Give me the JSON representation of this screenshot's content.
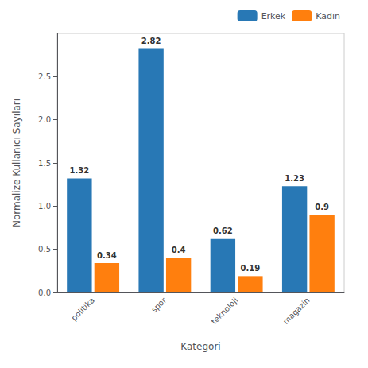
{
  "chart_data": {
    "type": "bar",
    "categories": [
      "politika",
      "spor",
      "teknoloji",
      "magazin"
    ],
    "series": [
      {
        "name": "Erkek",
        "color": "#2878b5",
        "values": [
          1.32,
          2.82,
          0.62,
          1.23
        ]
      },
      {
        "name": "Kadın",
        "color": "#ff7f0e",
        "values": [
          0.34,
          0.4,
          0.19,
          0.9
        ]
      }
    ],
    "xlabel": "Kategori",
    "ylabel": "Normalize Kullanıcı Sayıları",
    "ylim": [
      0,
      3.0
    ],
    "yticks": [
      {
        "value": 0,
        "label": "0.0"
      },
      {
        "value": 0.5,
        "label": "0.5"
      },
      {
        "value": 1,
        "label": "1.0"
      },
      {
        "value": 1.5,
        "label": "1.5"
      },
      {
        "value": 2,
        "label": "2.0"
      },
      {
        "value": 2.5,
        "label": "2.5"
      }
    ],
    "grid": false,
    "legend": "upper right",
    "data_labels": true
  }
}
